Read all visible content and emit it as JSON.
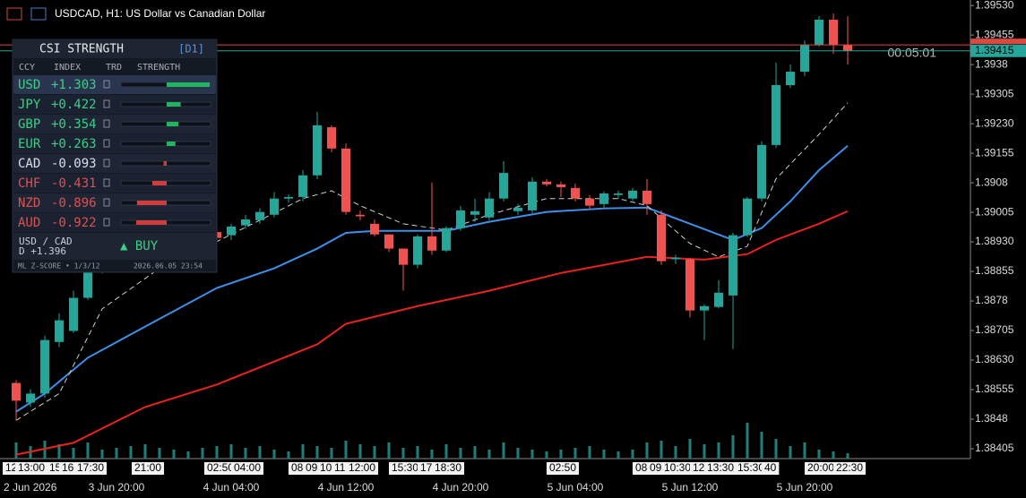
{
  "header": {
    "title": "USDCAD, H1:  US Dollar vs Canadian Dollar"
  },
  "chart_data": {
    "type": "candlestick",
    "up_color": "#26a69a",
    "down_color": "#ef5350",
    "candles": [
      [
        1.38572,
        1.38579,
        1.38477,
        1.38527
      ],
      [
        1.38522,
        1.38556,
        1.38511,
        1.38545
      ],
      [
        1.38545,
        1.38692,
        1.38534,
        1.38681
      ],
      [
        1.38676,
        1.38749,
        1.38663,
        1.38731
      ],
      [
        1.38704,
        1.38806,
        1.38699,
        1.38788
      ],
      [
        1.38788,
        1.38885,
        1.38783,
        1.38863
      ],
      [
        1.38863,
        1.3891,
        1.3885,
        1.38897
      ],
      [
        1.38897,
        1.38915,
        1.3887,
        1.38881
      ],
      [
        1.38881,
        1.3894,
        1.38875,
        1.38926
      ],
      [
        1.38926,
        1.38945,
        1.38905,
        1.38915
      ],
      [
        1.38915,
        1.3896,
        1.38905,
        1.3895
      ],
      [
        1.3895,
        1.38965,
        1.38925,
        1.38935
      ],
      [
        1.38935,
        1.38985,
        1.3893,
        1.3897
      ],
      [
        1.3897,
        1.3898,
        1.38945,
        1.38955
      ],
      [
        1.38955,
        1.38965,
        1.3893,
        1.3894
      ],
      [
        1.38947,
        1.38976,
        1.38935,
        1.38969
      ],
      [
        1.38972,
        1.38998,
        1.38963,
        1.38987
      ],
      [
        1.38985,
        1.39015,
        1.38976,
        1.39006
      ],
      [
        1.38999,
        1.39056,
        1.38992,
        1.3904
      ],
      [
        1.3904,
        1.39051,
        1.3903,
        1.39044
      ],
      [
        1.39044,
        1.39112,
        1.39033,
        1.39099
      ],
      [
        1.39099,
        1.3926,
        1.39089,
        1.39226
      ],
      [
        1.39221,
        1.39226,
        1.39158,
        1.39167
      ],
      [
        1.39167,
        1.3918,
        1.38999,
        1.39006
      ],
      [
        1.38999,
        1.3901,
        1.38985,
        1.38995
      ],
      [
        1.38976,
        1.38987,
        1.38944,
        1.38949
      ],
      [
        1.38949,
        1.38949,
        1.38904,
        1.38913
      ],
      [
        1.38913,
        1.38913,
        1.38806,
        1.38872
      ],
      [
        1.38872,
        1.38949,
        1.38863,
        1.38944
      ],
      [
        1.38944,
        1.39081,
        1.38897,
        1.38908
      ],
      [
        1.38908,
        1.38969,
        1.38904,
        1.38965
      ],
      [
        1.38965,
        1.39021,
        1.38958,
        1.3901
      ],
      [
        1.38999,
        1.3904,
        1.38981,
        1.39008
      ],
      [
        1.38992,
        1.39056,
        1.38985,
        1.3904
      ],
      [
        1.3904,
        1.39135,
        1.39033,
        1.39105
      ],
      [
        1.39008,
        1.39026,
        1.38999,
        1.39017
      ],
      [
        1.3901,
        1.39094,
        1.39003,
        1.39083
      ],
      [
        1.39083,
        1.3909,
        1.39071,
        1.39076
      ],
      [
        1.39076,
        1.39083,
        1.39044,
        1.39069
      ],
      [
        1.39067,
        1.39078,
        1.39033,
        1.3904
      ],
      [
        1.3904,
        1.39049,
        1.39015,
        1.39022
      ],
      [
        1.39026,
        1.39058,
        1.39017,
        1.39053
      ],
      [
        1.39049,
        1.3906,
        1.3904,
        1.39053
      ],
      [
        1.3904,
        1.39067,
        1.39035,
        1.3906
      ],
      [
        1.3906,
        1.3909,
        1.38999,
        1.39026
      ],
      [
        1.38999,
        1.3901,
        1.38872,
        1.38881
      ],
      [
        1.38886,
        1.38897,
        1.38874,
        1.3889
      ],
      [
        1.38886,
        1.3889,
        1.38738,
        1.38756
      ],
      [
        1.38756,
        1.38772,
        1.38681,
        1.38767
      ],
      [
        1.38765,
        1.38833,
        1.38761,
        1.38801
      ],
      [
        1.38794,
        1.38953,
        1.38658,
        1.38947
      ],
      [
        1.38947,
        1.39044,
        1.38942,
        1.3904
      ],
      [
        1.3904,
        1.39185,
        1.39033,
        1.39176
      ],
      [
        1.39176,
        1.39385,
        1.39169,
        1.39328
      ],
      [
        1.39328,
        1.3938,
        1.39321,
        1.39362
      ],
      [
        1.39362,
        1.39441,
        1.39351,
        1.3943
      ],
      [
        1.3943,
        1.39503,
        1.39426,
        1.39494
      ],
      [
        1.39494,
        1.3951,
        1.39407,
        1.3943
      ],
      [
        1.3943,
        1.39503,
        1.3938,
        1.39415
      ]
    ],
    "volume_color": "#1f7f77",
    "volume": [
      18,
      14,
      20,
      16,
      12,
      18,
      10,
      12,
      14,
      16,
      12,
      10,
      8,
      12,
      14,
      16,
      12,
      14,
      10,
      8,
      16,
      14,
      12,
      20,
      16,
      14,
      18,
      12,
      14,
      10,
      16,
      12,
      14,
      10,
      18,
      12,
      10,
      8,
      10,
      12,
      14,
      10,
      8,
      10,
      18,
      20,
      14,
      22,
      16,
      18,
      26,
      40,
      30,
      22,
      14,
      18,
      10,
      8,
      6
    ],
    "lines": [
      {
        "color": "#3d8fe8",
        "dash": false,
        "x": [
          0,
          2,
          5,
          9,
          14,
          18,
          21,
          23,
          25,
          30,
          33,
          37,
          41,
          44,
          47,
          50,
          52,
          54,
          56,
          58
        ],
        "values": [
          1.38499,
          1.38545,
          1.38636,
          1.38715,
          1.38813,
          1.38863,
          1.38913,
          1.38953,
          1.38958,
          1.38958,
          1.38981,
          1.39006,
          1.39015,
          1.39017,
          1.38976,
          1.38935,
          1.38965,
          1.39033,
          1.39112,
          1.39174
        ]
      },
      {
        "color": "#e8231e",
        "dash": false,
        "x": [
          0,
          4,
          9,
          14,
          21,
          23,
          28,
          33,
          38,
          44,
          48,
          51,
          53,
          56,
          58
        ],
        "values": [
          1.3839,
          1.3842,
          1.38511,
          1.38568,
          1.3867,
          1.38722,
          1.38767,
          1.38806,
          1.38851,
          1.38892,
          1.38885,
          1.38899,
          1.38935,
          1.38976,
          1.39008
        ]
      },
      {
        "color": "#d0d0d0",
        "dash": true,
        "x": [
          0,
          3,
          6,
          10,
          14,
          18,
          20,
          22,
          24,
          27,
          30,
          33,
          37,
          42,
          44,
          47,
          49,
          51,
          53,
          56,
          58
        ],
        "values": [
          1.38477,
          1.38545,
          1.3876,
          1.38863,
          1.38931,
          1.39003,
          1.3904,
          1.3906,
          1.39022,
          1.38976,
          1.3896,
          1.38999,
          1.3904,
          1.3904,
          1.39022,
          1.38926,
          1.38892,
          1.38919,
          1.3909,
          1.39203,
          1.39283
        ]
      }
    ],
    "ylim": [
      1.3838,
      1.39544
    ],
    "yticks": [
      {
        "value": 1.3953,
        "label": "1.39530"
      },
      1.39455,
      1.3938,
      1.39305,
      {
        "value": 1.3923,
        "label": "1.39230"
      },
      1.39155,
      1.3908,
      1.39005,
      {
        "value": 1.3893,
        "label": "1.38930"
      },
      1.38855,
      1.3878,
      1.38705,
      {
        "value": 1.3863,
        "label": "1.38630"
      },
      1.38555,
      1.3848,
      1.38405
    ],
    "bid": 1.39415,
    "ask": 1.3943,
    "timer": "00:05:01",
    "time_labels": [
      "2 Jun 2026",
      "3 Jun 20:00",
      "4 Jun 04:00",
      "4 Jun 12:00",
      "4 Jun 20:00",
      "5 Jun 04:00",
      "5 Jun 12:00",
      "5 Jun 20:00"
    ],
    "event_labels": [
      "12",
      "13:00",
      "15",
      "16",
      "17:30",
      "21:00",
      "02:50",
      "04:00",
      "08",
      "09",
      "10",
      "11",
      "12:00",
      "15:30",
      "17",
      "18:30",
      "02:50",
      "08",
      "09",
      "10:30",
      "12",
      "13:30",
      "15:30",
      "40",
      "20:00",
      "22:30"
    ]
  },
  "panel": {
    "title": "CSI STRENGTH",
    "timeframe": "[D1]",
    "columns": [
      "CCY",
      "INDEX",
      "TRD",
      "STRENGTH"
    ],
    "rows": [
      {
        "ccy": "USD",
        "index": {
          "value": 1.303,
          "label": "+1.303"
        }
      },
      {
        "ccy": "JPY",
        "index": {
          "value": 0.422,
          "label": "+0.422"
        }
      },
      {
        "ccy": "GBP",
        "index": {
          "value": 0.354,
          "label": "+0.354"
        }
      },
      {
        "ccy": "EUR",
        "index": {
          "value": 0.263,
          "label": "+0.263"
        }
      },
      {
        "ccy": "CAD",
        "index": {
          "value": -0.093,
          "label": "-0.093"
        }
      },
      {
        "ccy": "CHF",
        "index": {
          "value": -0.431,
          "label": "-0.431"
        }
      },
      {
        "ccy": "NZD",
        "index": {
          "value": -0.896,
          "label": "-0.896"
        }
      },
      {
        "ccy": "AUD",
        "index": {
          "value": -0.922,
          "label": "-0.922"
        }
      }
    ],
    "pair": "USD / CAD",
    "diff": "D +1.396",
    "signal": "▲  BUY",
    "footer_left": "ML Z-SCORE • 1/3/12",
    "footer_right": "2026.06.05 23:54"
  }
}
